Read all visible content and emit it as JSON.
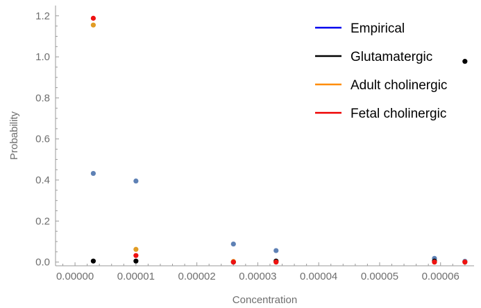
{
  "chart_data": {
    "type": "scatter",
    "title": "",
    "xlabel": "Concentration",
    "ylabel": "Probability",
    "xlim": [
      -3.2e-06,
      6.55e-05
    ],
    "ylim": [
      -0.018,
      1.25
    ],
    "x_ticks": [
      {
        "value": 0.0,
        "label": "0.00000"
      },
      {
        "value": 1e-05,
        "label": "0.00001"
      },
      {
        "value": 2e-05,
        "label": "0.00002"
      },
      {
        "value": 3e-05,
        "label": "0.00003"
      },
      {
        "value": 4e-05,
        "label": "0.00004"
      },
      {
        "value": 5e-05,
        "label": "0.00005"
      },
      {
        "value": 6e-05,
        "label": "0.00006"
      }
    ],
    "y_ticks": [
      {
        "value": 0.0,
        "label": "0.0"
      },
      {
        "value": 0.2,
        "label": "0.2"
      },
      {
        "value": 0.4,
        "label": "0.4"
      },
      {
        "value": 0.6,
        "label": "0.6"
      },
      {
        "value": 0.8,
        "label": "0.8"
      },
      {
        "value": 1.0,
        "label": "1.0"
      },
      {
        "value": 1.2,
        "label": "1.2"
      }
    ],
    "grid": false,
    "legend_position": "top-right",
    "legend": [
      {
        "name": "Empirical",
        "color": "#0000ee"
      },
      {
        "name": "Glutamatergic",
        "color": "#000000"
      },
      {
        "name": "Adult cholinergic",
        "color": "#ff8c00"
      },
      {
        "name": "Fetal cholinergic",
        "color": "#ee0000"
      }
    ],
    "series": [
      {
        "name": "Empirical",
        "color": "#5e81b5",
        "points": [
          {
            "x": 3e-06,
            "y": 0.432
          },
          {
            "x": 1e-05,
            "y": 0.395
          },
          {
            "x": 2.6e-05,
            "y": 0.088
          },
          {
            "x": 3.3e-05,
            "y": 0.056
          },
          {
            "x": 5.9e-05,
            "y": 0.018
          },
          {
            "x": 6.4e-05,
            "y": 0.004
          }
        ]
      },
      {
        "name": "Glutamatergic",
        "color": "#000000",
        "points": [
          {
            "x": 3e-06,
            "y": 0.005
          },
          {
            "x": 1e-05,
            "y": 0.005
          },
          {
            "x": 2.6e-05,
            "y": 0.0
          },
          {
            "x": 3.3e-05,
            "y": 0.005
          },
          {
            "x": 5.9e-05,
            "y": 0.005
          },
          {
            "x": 6.4e-05,
            "y": 0.978
          }
        ]
      },
      {
        "name": "Adult cholinergic",
        "color": "#e19c24",
        "points": [
          {
            "x": 3e-06,
            "y": 1.155
          },
          {
            "x": 1e-05,
            "y": 0.062
          },
          {
            "x": 2.6e-05,
            "y": 0.003
          },
          {
            "x": 3.3e-05,
            "y": 0.0
          },
          {
            "x": 5.9e-05,
            "y": 0.0
          },
          {
            "x": 6.4e-05,
            "y": 0.0
          }
        ]
      },
      {
        "name": "Fetal cholinergic",
        "color": "#ee1111",
        "points": [
          {
            "x": 3e-06,
            "y": 1.188
          },
          {
            "x": 1e-05,
            "y": 0.032
          },
          {
            "x": 2.6e-05,
            "y": 0.0
          },
          {
            "x": 3.3e-05,
            "y": 0.0
          },
          {
            "x": 5.9e-05,
            "y": 0.0
          },
          {
            "x": 6.4e-05,
            "y": 0.0
          }
        ]
      }
    ]
  }
}
